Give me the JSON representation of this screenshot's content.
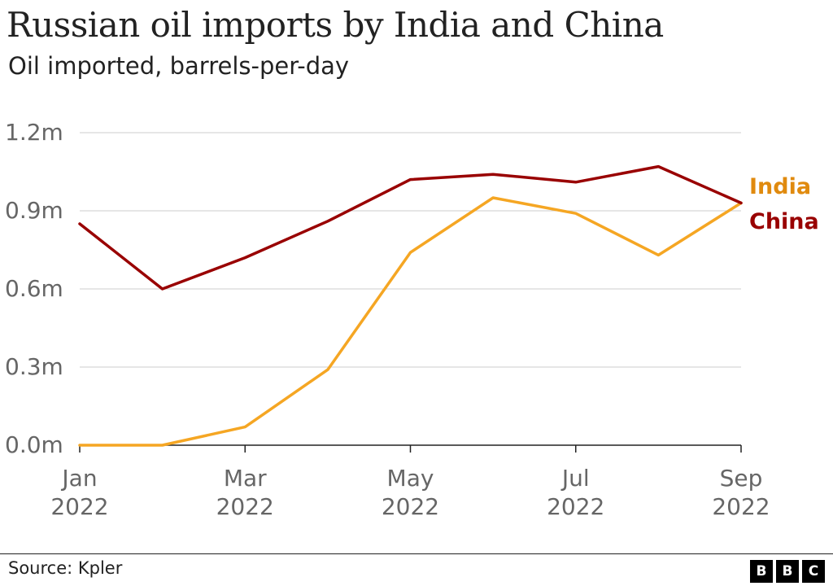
{
  "title": "Russian oil imports by India and China",
  "subtitle": "Oil imported, barrels-per-day",
  "source": "Source: Kpler",
  "logo": [
    "B",
    "B",
    "C"
  ],
  "colors": {
    "india": "#f5a623",
    "india_label": "#e08a0e",
    "china": "#990000",
    "grid": "#cccccc",
    "axis": "#222222",
    "tick_text": "#666666"
  },
  "chart_data": {
    "type": "line",
    "title": "Russian oil imports by India and China",
    "subtitle": "Oil imported, barrels-per-day",
    "xlabel": "",
    "ylabel": "",
    "x": [
      "2022-01",
      "2022-02",
      "2022-03",
      "2022-04",
      "2022-05",
      "2022-06",
      "2022-07",
      "2022-08",
      "2022-09"
    ],
    "x_ticks": [
      {
        "month": "Jan",
        "year": "2022",
        "index": 0
      },
      {
        "month": "Mar",
        "year": "2022",
        "index": 2
      },
      {
        "month": "May",
        "year": "2022",
        "index": 4
      },
      {
        "month": "Jul",
        "year": "2022",
        "index": 6
      },
      {
        "month": "Sep",
        "year": "2022",
        "index": 8
      }
    ],
    "y_ticks": [
      {
        "value": 0,
        "label": "0.0m"
      },
      {
        "value": 0.3,
        "label": "0.3m"
      },
      {
        "value": 0.6,
        "label": "0.6m"
      },
      {
        "value": 0.9,
        "label": "0.9m"
      },
      {
        "value": 1.2,
        "label": "1.2m"
      }
    ],
    "ylim": [
      0,
      1.2
    ],
    "grid": true,
    "legend": "direct labels at right end of lines",
    "series": [
      {
        "name": "India",
        "values": [
          0.0,
          0.0,
          0.07,
          0.29,
          0.74,
          0.95,
          0.89,
          0.73,
          0.93
        ]
      },
      {
        "name": "China",
        "values": [
          0.85,
          0.6,
          0.72,
          0.86,
          1.02,
          1.04,
          1.01,
          1.07,
          0.93
        ]
      }
    ]
  }
}
